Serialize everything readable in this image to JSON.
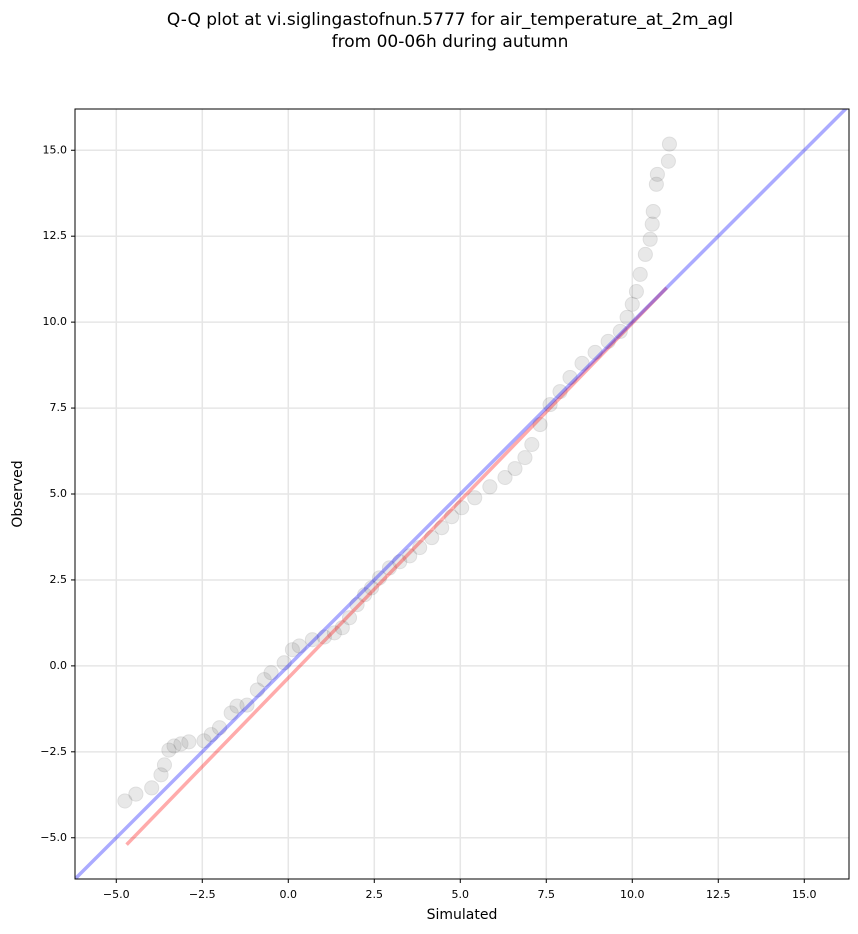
{
  "chart_data": {
    "type": "scatter",
    "title": [
      "Q-Q plot at vi.siglingastofnun.5777 for air_temperature_at_2m_agl",
      "from 00-06h during autumn"
    ],
    "x_label": "Simulated",
    "y_label": "Observed",
    "xlim": [
      -6.2,
      16.3
    ],
    "ylim": [
      -6.2,
      16.2
    ],
    "xticks": [
      {
        "value": -5,
        "label": "−5.0"
      },
      {
        "value": -2.5,
        "label": "−2.5"
      },
      {
        "value": 0,
        "label": "0.0"
      },
      {
        "value": 2.5,
        "label": "2.5"
      },
      {
        "value": 5,
        "label": "5.0"
      },
      {
        "value": 7.5,
        "label": "7.5"
      },
      {
        "value": 10,
        "label": "10.0"
      },
      {
        "value": 12.5,
        "label": "12.5"
      },
      {
        "value": 15,
        "label": "15.0"
      }
    ],
    "yticks": [
      {
        "value": -5,
        "label": "−5.0"
      },
      {
        "value": -2.5,
        "label": "−2.5"
      },
      {
        "value": 0,
        "label": "0.0"
      },
      {
        "value": 2.5,
        "label": "2.5"
      },
      {
        "value": 5,
        "label": "5.0"
      },
      {
        "value": 7.5,
        "label": "7.5"
      },
      {
        "value": 10,
        "label": "10.0"
      },
      {
        "value": 12.5,
        "label": "12.5"
      },
      {
        "value": 15,
        "label": "15.0"
      }
    ],
    "grid": true,
    "series": [
      {
        "type": "scatter",
        "color": "#555555",
        "x": [
          -4.75,
          -4.43,
          -3.97,
          -3.7,
          -3.6,
          -3.47,
          -3.32,
          -3.12,
          -2.89,
          -2.45,
          -2.24,
          -2.0,
          -1.66,
          -1.49,
          -1.2,
          -0.9,
          -0.7,
          -0.5,
          -0.12,
          0.12,
          0.32,
          0.7,
          1.05,
          1.34,
          1.57,
          1.78,
          2.0,
          2.22,
          2.42,
          2.65,
          2.94,
          3.24,
          3.53,
          3.82,
          4.17,
          4.46,
          4.75,
          5.04,
          5.42,
          5.86,
          6.3,
          6.59,
          6.88,
          7.08,
          7.32,
          7.61,
          7.9,
          8.19,
          8.54,
          8.92,
          9.3,
          9.65,
          9.85,
          10.0,
          10.12,
          10.23,
          10.38,
          10.52,
          10.58,
          10.61,
          10.7,
          10.73,
          11.05,
          11.08
        ],
        "y": [
          -3.93,
          -3.73,
          -3.55,
          -3.17,
          -2.88,
          -2.45,
          -2.33,
          -2.27,
          -2.21,
          -2.18,
          -2.0,
          -1.8,
          -1.37,
          -1.17,
          -1.14,
          -0.7,
          -0.4,
          -0.2,
          0.09,
          0.47,
          0.58,
          0.76,
          0.84,
          0.96,
          1.11,
          1.4,
          1.78,
          2.07,
          2.27,
          2.56,
          2.85,
          3.03,
          3.2,
          3.44,
          3.73,
          4.02,
          4.34,
          4.6,
          4.89,
          5.21,
          5.48,
          5.74,
          6.06,
          6.44,
          7.02,
          7.6,
          7.98,
          8.39,
          8.8,
          9.12,
          9.44,
          9.73,
          10.14,
          10.52,
          10.89,
          11.39,
          11.97,
          12.41,
          12.85,
          13.22,
          14.01,
          14.3,
          14.68,
          15.18
        ]
      },
      {
        "type": "line",
        "color": "#ff0000",
        "x": [
          -4.7,
          11.0
        ],
        "y": [
          -5.2,
          11.0
        ]
      },
      {
        "type": "line",
        "color": "#0000ff",
        "x": [
          -6.2,
          16.3
        ],
        "y": [
          -6.2,
          16.3
        ]
      }
    ]
  }
}
